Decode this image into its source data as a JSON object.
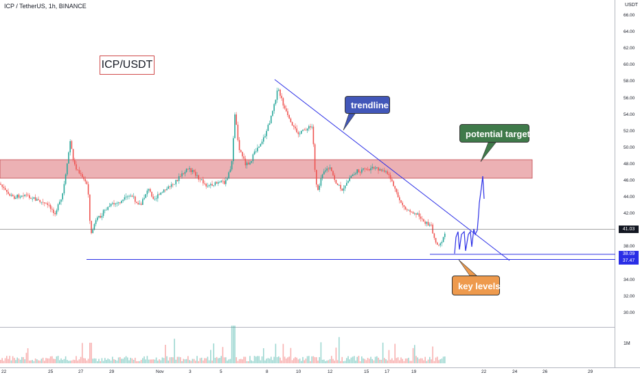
{
  "header": {
    "symbol_line": "ICP / TetherUS, 1h, BINANCE"
  },
  "title_box": {
    "text": "ICP/USDT"
  },
  "callouts": {
    "trendline": "trendline",
    "potential_target": "potential target",
    "key_levels": "key levels"
  },
  "axis": {
    "currency": "USDT",
    "price_ticks": [
      "66.00",
      "64.00",
      "62.00",
      "60.00",
      "58.00",
      "56.00",
      "54.00",
      "52.00",
      "50.00",
      "48.00",
      "46.00",
      "44.00",
      "42.00",
      "40.00",
      "38.00",
      "36.00",
      "34.00",
      "32.00",
      "30.00"
    ],
    "volume_tick": "1M",
    "x_ticks": [
      "22",
      "25",
      "27",
      "29",
      "Nov",
      "3",
      "5",
      "8",
      "10",
      "12",
      "15",
      "17",
      "19",
      "22",
      "24",
      "26",
      "29"
    ]
  },
  "price_labels": {
    "current": "41.03",
    "level_upper": "38.09",
    "level_lower": "37.47"
  },
  "colors": {
    "up": "#26a69a",
    "down": "#ef5350",
    "zone_fill": "#e9a3a7",
    "zone_border": "#c2464d",
    "blue_line": "#2a2ee6",
    "trendline_box": "#4257b9",
    "target_box": "#3f7a4a",
    "key_box": "#ee9a4d"
  }
}
